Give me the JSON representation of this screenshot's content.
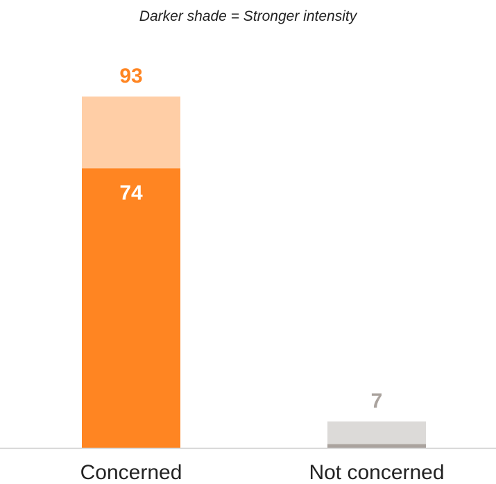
{
  "subtitle": "Darker shade = Stronger intensity",
  "chart_data": {
    "type": "bar",
    "stacked": true,
    "categories": [
      "Concerned",
      "Not concerned"
    ],
    "totals": [
      93,
      7
    ],
    "strong": [
      74,
      1
    ],
    "total_labels": [
      "93",
      "7"
    ],
    "strong_labels": [
      "74",
      ""
    ],
    "ylim": [
      0,
      100
    ],
    "colors": {
      "Concerned": {
        "strong": "#FF8522",
        "light": "#FFCEA6",
        "label": "#FF8522"
      },
      "Not concerned": {
        "strong": "#AAA39E",
        "light": "#DCDAD8",
        "label": "#AAA39E"
      }
    },
    "baseline_color": "#CCCCCC"
  }
}
